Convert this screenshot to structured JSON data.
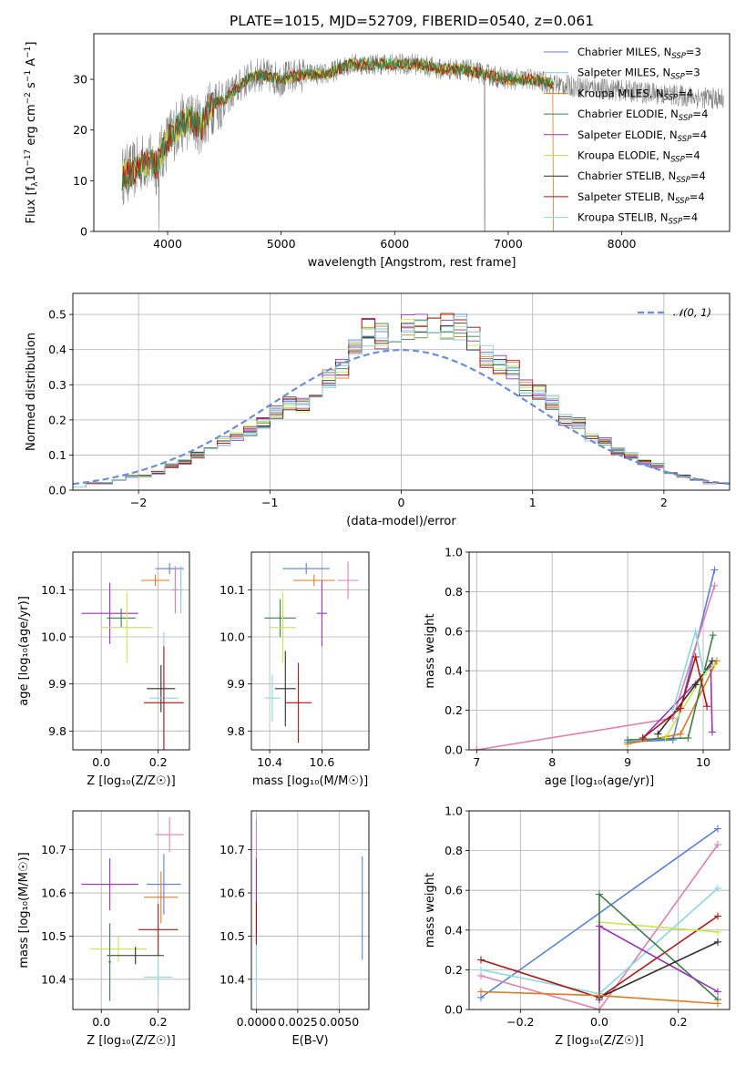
{
  "palette": {
    "chabrier_miles": "#5b7fd9",
    "salpeter_miles": "#86c6e6",
    "kroupa_miles": "#e07b22",
    "chabrier_elodie": "#3e7e4a",
    "salpeter_elodie": "#9b32b8",
    "kroupa_elodie": "#c8e64a",
    "chabrier_stelib": "#2f2f2f",
    "salpeter_stelib": "#b01515",
    "kroupa_stelib": "#8ad8e0",
    "kroupa_stelib_alt": "#e07fb0",
    "raw_spectrum": "#808080",
    "gaussian": "#6a8ed8"
  },
  "chart_data": [
    {
      "id": "spectrum",
      "type": "line",
      "title": "PLATE=1015, MJD=52709, FIBERID=0540, z=0.061",
      "xlabel": "wavelength [Angstrom, rest frame]",
      "ylabel_parts": [
        "Flux [f",
        "λ",
        "10",
        "−17",
        " erg cm",
        "−2",
        " s",
        "−1",
        " A",
        "−1",
        "]"
      ],
      "xlim": [
        3350,
        8950
      ],
      "ylim": [
        0,
        39
      ],
      "xticks": [
        4000,
        5000,
        6000,
        7000,
        8000
      ],
      "yticks": [
        0,
        10,
        20,
        30
      ],
      "grid": false,
      "legend_position": "upper-right",
      "legend": [
        {
          "name": "Chabrier MILES",
          "nssp": "3"
        },
        {
          "name": "Salpeter MILES",
          "nssp": "3"
        },
        {
          "name": "Kroupa MILES",
          "nssp": "4"
        },
        {
          "name": "Chabrier ELODIE",
          "nssp": "4"
        },
        {
          "name": "Salpeter ELODIE",
          "nssp": "4"
        },
        {
          "name": "Kroupa ELODIE",
          "nssp": "4"
        },
        {
          "name": "Chabrier STELIB",
          "nssp": "4"
        },
        {
          "name": "Salpeter STELIB",
          "nssp": "4"
        },
        {
          "name": "Kroupa STELIB",
          "nssp": "4"
        }
      ],
      "continuum": {
        "x": [
          3600,
          3700,
          3800,
          3900,
          4000,
          4100,
          4200,
          4300,
          4400,
          4500,
          4600,
          4700,
          4800,
          5000,
          5200,
          5400,
          5600,
          5800,
          6000,
          6200,
          6400,
          6600,
          6800,
          7000,
          7200,
          7400
        ],
        "y": [
          11,
          12,
          14,
          13,
          18,
          21,
          22,
          21,
          25,
          26,
          28,
          30,
          31,
          30,
          31,
          31,
          33,
          33,
          33,
          33,
          32,
          32,
          31,
          30,
          30,
          29
        ]
      },
      "model_end": 7400,
      "data_end": 8900
    },
    {
      "id": "residuals",
      "type": "step",
      "xlabel": "(data-model)/error",
      "ylabel": "Normed distribution",
      "xlim": [
        -2.5,
        2.5
      ],
      "ylim": [
        0,
        0.56
      ],
      "xticks": [
        -2,
        -1,
        0,
        1,
        2
      ],
      "xtick_labels": [
        "−2",
        "−1",
        "0",
        "1",
        "2"
      ],
      "yticks": [
        0.0,
        0.1,
        0.2,
        0.3,
        0.4,
        0.5
      ],
      "ytick_labels": [
        "0.0",
        "0.1",
        "0.2",
        "0.3",
        "0.4",
        "0.5"
      ],
      "grid": true,
      "legend_position": "upper-right",
      "gaussian_label": "𝒩(0, 1)",
      "bins": [
        -2.5,
        -2.4,
        -2.3,
        -2.2,
        -2.1,
        -2.0,
        -1.9,
        -1.8,
        -1.7,
        -1.6,
        -1.5,
        -1.4,
        -1.3,
        -1.2,
        -1.1,
        -1.0,
        -0.9,
        -0.8,
        -0.7,
        -0.6,
        -0.5,
        -0.4,
        -0.3,
        -0.2,
        -0.1,
        0.0,
        0.1,
        0.2,
        0.3,
        0.4,
        0.5,
        0.6,
        0.7,
        0.8,
        0.9,
        1.0,
        1.1,
        1.2,
        1.3,
        1.4,
        1.5,
        1.6,
        1.7,
        1.8,
        1.9,
        2.0,
        2.1,
        2.2,
        2.3,
        2.4,
        2.5
      ],
      "base_hist": [
        0.01,
        0.02,
        0.02,
        0.03,
        0.04,
        0.04,
        0.05,
        0.07,
        0.08,
        0.1,
        0.12,
        0.14,
        0.15,
        0.17,
        0.19,
        0.22,
        0.25,
        0.24,
        0.27,
        0.32,
        0.35,
        0.4,
        0.45,
        0.44,
        0.45,
        0.46,
        0.47,
        0.46,
        0.47,
        0.46,
        0.43,
        0.38,
        0.36,
        0.34,
        0.29,
        0.28,
        0.25,
        0.2,
        0.19,
        0.15,
        0.14,
        0.11,
        0.1,
        0.08,
        0.07,
        0.05,
        0.04,
        0.03,
        0.02,
        0.02
      ]
    },
    {
      "id": "age-vs-z",
      "type": "errorbar",
      "xlabel": "Z [log₁₀(Z/Z☉)]",
      "ylabel": "age  [log₁₀(age/yr)]",
      "xlim": [
        -0.1,
        0.31
      ],
      "ylim": [
        9.76,
        10.18
      ],
      "xticks": [
        0.0,
        0.2
      ],
      "xtick_labels": [
        "0.0",
        "0.2"
      ],
      "yticks": [
        9.8,
        9.9,
        10.0,
        10.1
      ],
      "ytick_labels": [
        "9.8",
        "9.9",
        "10.0",
        "10.1"
      ],
      "grid": true,
      "points": [
        {
          "series": "chabrier_miles",
          "x": 0.24,
          "xe": 0.05,
          "y": 10.145,
          "ye": 0.012
        },
        {
          "series": "kroupa_miles",
          "x": 0.19,
          "xe": 0.05,
          "y": 10.12,
          "ye": 0.012
        },
        {
          "series": "kroupa_stelib_alt",
          "x": 0.26,
          "xe": 0.01,
          "y": 10.1,
          "ye": 0.05
        },
        {
          "series": "salpeter_elodie",
          "x": 0.03,
          "xe": 0.1,
          "y": 10.05,
          "ye": 0.065
        },
        {
          "series": "chabrier_elodie",
          "x": 0.07,
          "xe": 0.05,
          "y": 10.04,
          "ye": 0.02
        },
        {
          "series": "kroupa_elodie",
          "x": 0.09,
          "xe": 0.09,
          "y": 10.02,
          "ye": 0.075
        },
        {
          "series": "chabrier_stelib",
          "x": 0.21,
          "xe": 0.05,
          "y": 9.89,
          "ye": 0.05
        },
        {
          "series": "kroupa_stelib",
          "x": 0.22,
          "xe": 0.05,
          "y": 9.87,
          "ye": 0.14
        },
        {
          "series": "salpeter_stelib",
          "x": 0.22,
          "xe": 0.07,
          "y": 9.86,
          "ye": 0.12
        },
        {
          "series": "salpeter_miles",
          "x": 0.28,
          "xe": 0.005,
          "y": 10.1,
          "ye": 0.05
        }
      ]
    },
    {
      "id": "age-vs-mass",
      "type": "errorbar",
      "xlabel": "mass [log₁₀(M/M☉)]",
      "ylabel": "",
      "xlim": [
        10.33,
        10.78
      ],
      "ylim": [
        9.76,
        10.18
      ],
      "xticks": [
        10.4,
        10.6
      ],
      "xtick_labels": [
        "10.4",
        "10.6"
      ],
      "yticks": [
        9.8,
        9.9,
        10.0,
        10.1
      ],
      "ytick_labels": [
        "9.8",
        "9.9",
        "10.0",
        "10.1"
      ],
      "grid": true,
      "points": [
        {
          "series": "chabrier_miles",
          "x": 10.54,
          "xe": 0.09,
          "y": 10.145,
          "ye": 0.012
        },
        {
          "series": "kroupa_miles",
          "x": 10.57,
          "xe": 0.08,
          "y": 10.12,
          "ye": 0.012
        },
        {
          "series": "kroupa_stelib_alt",
          "x": 10.7,
          "xe": 0.04,
          "y": 10.12,
          "ye": 0.04
        },
        {
          "series": "salpeter_elodie",
          "x": 10.6,
          "xe": 0.02,
          "y": 10.05,
          "ye": 0.07
        },
        {
          "series": "chabrier_elodie",
          "x": 10.44,
          "xe": 0.06,
          "y": 10.04,
          "ye": 0.04
        },
        {
          "series": "kroupa_elodie",
          "x": 10.45,
          "xe": 0.05,
          "y": 10.02,
          "ye": 0.075
        },
        {
          "series": "chabrier_stelib",
          "x": 10.46,
          "xe": 0.04,
          "y": 9.89,
          "ye": 0.08
        },
        {
          "series": "kroupa_stelib",
          "x": 10.41,
          "xe": 0.03,
          "y": 9.87,
          "ye": 0.05
        },
        {
          "series": "salpeter_stelib",
          "x": 10.51,
          "xe": 0.05,
          "y": 9.86,
          "ye": 0.085
        }
      ]
    },
    {
      "id": "weight-vs-age",
      "type": "line",
      "xlabel": "age  [log₁₀(age/yr)]",
      "ylabel": "mass weight",
      "xlim": [
        6.9,
        10.35
      ],
      "ylim": [
        0,
        1.0
      ],
      "xticks": [
        7,
        8,
        9,
        10
      ],
      "xtick_labels": [
        "7",
        "8",
        "9",
        "10"
      ],
      "yticks": [
        0.0,
        0.2,
        0.4,
        0.6,
        0.8,
        1.0
      ],
      "ytick_labels": [
        "0.0",
        "0.2",
        "0.4",
        "0.6",
        "0.8",
        "1.0"
      ],
      "grid": true,
      "series": [
        {
          "key": "chabrier_miles",
          "x": [
            9.0,
            9.6,
            10.15
          ],
          "y": [
            0.04,
            0.05,
            0.91
          ]
        },
        {
          "key": "kroupa_stelib_alt",
          "x": [
            7.0,
            9.6,
            10.15
          ],
          "y": [
            0.0,
            0.16,
            0.83
          ]
        },
        {
          "key": "kroupa_miles",
          "x": [
            9.0,
            9.7,
            10.18
          ],
          "y": [
            0.03,
            0.08,
            0.45
          ]
        },
        {
          "key": "chabrier_elodie",
          "x": [
            9.0,
            9.8,
            10.13
          ],
          "y": [
            0.05,
            0.06,
            0.58
          ]
        },
        {
          "key": "salpeter_elodie",
          "x": [
            9.2,
            10.1,
            10.12
          ],
          "y": [
            0.06,
            0.42,
            0.09
          ]
        },
        {
          "key": "kroupa_elodie",
          "x": [
            9.5,
            10.0,
            10.15
          ],
          "y": [
            0.06,
            0.38,
            0.43
          ]
        },
        {
          "key": "chabrier_stelib",
          "x": [
            9.4,
            9.9,
            10.12
          ],
          "y": [
            0.08,
            0.33,
            0.45
          ]
        },
        {
          "key": "salpeter_stelib",
          "x": [
            9.2,
            9.7,
            9.9,
            10.05
          ],
          "y": [
            0.06,
            0.21,
            0.47,
            0.22
          ]
        },
        {
          "key": "kroupa_stelib",
          "x": [
            9.6,
            9.9,
            10.0
          ],
          "y": [
            0.2,
            0.6,
            0.4
          ]
        }
      ]
    },
    {
      "id": "mass-vs-z",
      "type": "errorbar",
      "xlabel": "Z [log₁₀(Z/Z☉)]",
      "ylabel": "mass [log₁₀(M/M☉)]",
      "xlim": [
        -0.1,
        0.31
      ],
      "ylim": [
        10.33,
        10.79
      ],
      "xticks": [
        0.0,
        0.2
      ],
      "xtick_labels": [
        "0.0",
        "0.2"
      ],
      "yticks": [
        10.4,
        10.5,
        10.6,
        10.7
      ],
      "ytick_labels": [
        "10.4",
        "10.5",
        "10.6",
        "10.7"
      ],
      "grid": true,
      "points": [
        {
          "series": "kroupa_stelib_alt",
          "x": 0.24,
          "xe": 0.05,
          "y": 10.735,
          "ye": 0.04
        },
        {
          "series": "chabrier_miles",
          "x": 0.22,
          "xe": 0.06,
          "y": 10.62,
          "ye": 0.07
        },
        {
          "series": "salpeter_elodie",
          "x": 0.03,
          "xe": 0.1,
          "y": 10.62,
          "ye": 0.06
        },
        {
          "series": "kroupa_miles",
          "x": 0.21,
          "xe": 0.06,
          "y": 10.59,
          "ye": 0.06
        },
        {
          "series": "salpeter_stelib",
          "x": 0.2,
          "xe": 0.07,
          "y": 10.515,
          "ye": 0.06
        },
        {
          "series": "kroupa_elodie",
          "x": 0.06,
          "xe": 0.1,
          "y": 10.47,
          "ye": 0.03
        },
        {
          "series": "chabrier_stelib",
          "x": 0.12,
          "xe": 0.1,
          "y": 10.455,
          "ye": 0.02
        },
        {
          "series": "chabrier_elodie",
          "x": 0.03,
          "xe": 0.005,
          "y": 10.44,
          "ye": 0.09
        },
        {
          "series": "kroupa_stelib",
          "x": 0.2,
          "xe": 0.05,
          "y": 10.405,
          "ye": 0.045
        }
      ]
    },
    {
      "id": "mass-vs-ebv",
      "type": "errorbar",
      "xlabel": "E(B-V)",
      "ylabel": "",
      "xlim": [
        -0.0003,
        0.0068
      ],
      "ylim": [
        10.33,
        10.79
      ],
      "xticks": [
        0.0,
        0.0025,
        0.005
      ],
      "xtick_labels": [
        "0.0000",
        "0.0025",
        "0.0050"
      ],
      "yticks": [
        10.4,
        10.5,
        10.6,
        10.7
      ],
      "ytick_labels": [
        "10.4",
        "10.5",
        "10.6",
        "10.7"
      ],
      "grid": true,
      "points": [
        {
          "series": "kroupa_stelib_alt",
          "x": 0.0,
          "xe": 0.0,
          "y": 10.6,
          "ye": 0.17
        },
        {
          "series": "salpeter_elodie",
          "x": 0.0,
          "xe": 0.0,
          "y": 10.59,
          "ye": 0.09
        },
        {
          "series": "salpeter_stelib",
          "x": 0.0,
          "xe": 0.0,
          "y": 10.53,
          "ye": 0.05
        },
        {
          "series": "kroupa_stelib",
          "x": 0.0,
          "xe": 0.0,
          "y": 10.42,
          "ye": 0.06
        },
        {
          "series": "chabrier_miles",
          "x": 0.0064,
          "xe": 0.0,
          "y": 10.565,
          "ye": 0.12
        }
      ]
    },
    {
      "id": "weight-vs-z",
      "type": "line",
      "xlabel": "Z [log₁₀(Z/Z☉)]",
      "ylabel": "mass weight",
      "xlim": [
        -0.33,
        0.33
      ],
      "ylim": [
        0,
        1.0
      ],
      "xticks": [
        -0.2,
        0.0,
        0.2
      ],
      "xtick_labels": [
        "−0.2",
        "0.0",
        "0.2"
      ],
      "yticks": [
        0.0,
        0.2,
        0.4,
        0.6,
        0.8,
        1.0
      ],
      "ytick_labels": [
        "0.0",
        "0.2",
        "0.4",
        "0.6",
        "0.8",
        "1.0"
      ],
      "grid": true,
      "series": [
        {
          "key": "chabrier_miles",
          "x": [
            -0.3,
            0.3
          ],
          "y": [
            0.06,
            0.91
          ]
        },
        {
          "key": "kroupa_stelib_alt",
          "x": [
            -0.3,
            0.0,
            0.3
          ],
          "y": [
            0.17,
            0.0,
            0.83
          ]
        },
        {
          "key": "kroupa_stelib",
          "x": [
            -0.3,
            0.0,
            0.3
          ],
          "y": [
            0.2,
            0.08,
            0.61
          ]
        },
        {
          "key": "salpeter_stelib",
          "x": [
            -0.3,
            0.0,
            0.3
          ],
          "y": [
            0.25,
            0.06,
            0.47
          ]
        },
        {
          "key": "kroupa_elodie",
          "x": [
            0.0,
            0.0,
            0.3
          ],
          "y": [
            0.06,
            0.44,
            0.39
          ]
        },
        {
          "key": "chabrier_elodie",
          "x": [
            0.0,
            0.0,
            0.3
          ],
          "y": [
            0.05,
            0.58,
            0.05
          ]
        },
        {
          "key": "salpeter_elodie",
          "x": [
            0.0,
            0.0,
            0.3
          ],
          "y": [
            0.05,
            0.42,
            0.09
          ]
        },
        {
          "key": "chabrier_stelib",
          "x": [
            0.0,
            0.3
          ],
          "y": [
            0.06,
            0.34
          ]
        },
        {
          "key": "kroupa_miles",
          "x": [
            -0.3,
            0.0,
            0.3
          ],
          "y": [
            0.09,
            0.07,
            0.03
          ]
        }
      ]
    }
  ]
}
